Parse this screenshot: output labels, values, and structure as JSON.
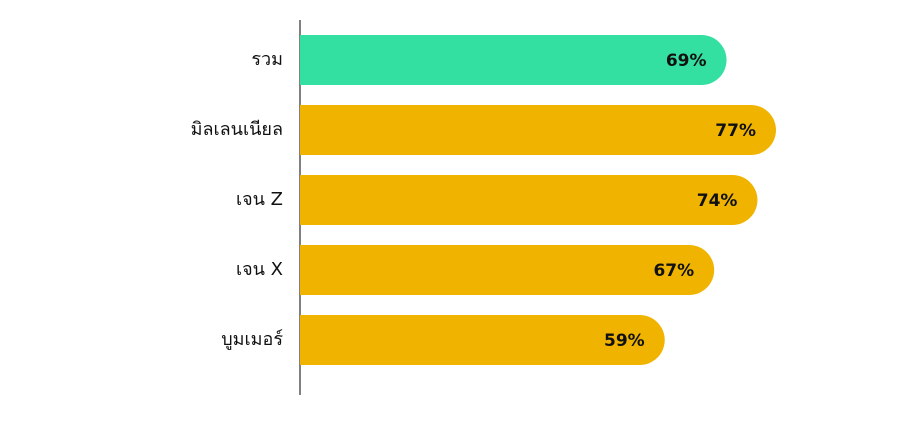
{
  "chart_data": {
    "type": "bar",
    "orientation": "horizontal",
    "categories": [
      "รวม",
      "มิลเลนเนียล",
      "เจน Z",
      "เจน X",
      "บูมเมอร์"
    ],
    "values": [
      69,
      77,
      74,
      67,
      59
    ],
    "value_labels": [
      "69%",
      "77%",
      "74%",
      "67%",
      "59%"
    ],
    "colors": [
      "#34e0a1",
      "#f0b400",
      "#f0b400",
      "#f0b400",
      "#f0b400"
    ]
  }
}
